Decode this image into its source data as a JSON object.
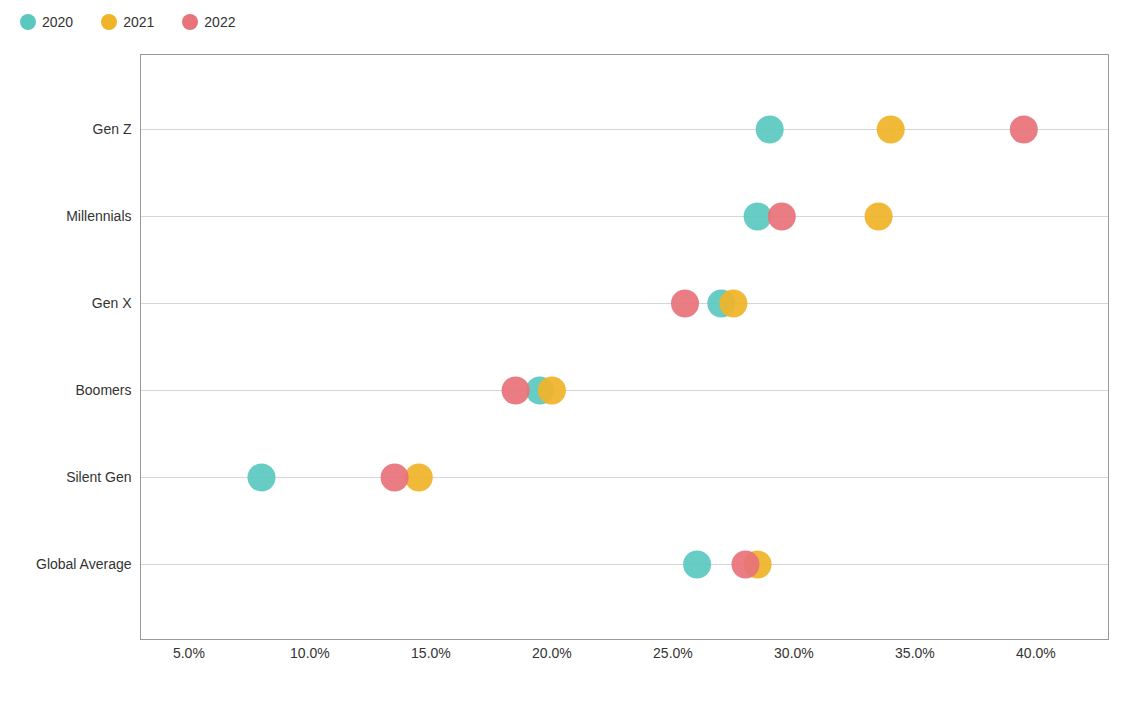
{
  "chart_data": {
    "type": "dot",
    "orientation": "horizontal",
    "categories": [
      "Gen Z",
      "Millennials",
      "Gen X",
      "Boomers",
      "Silent Gen",
      "Global Average"
    ],
    "series": [
      {
        "name": "2020",
        "color": "#5BC8C0",
        "values": [
          29.0,
          28.5,
          27.0,
          19.5,
          8.0,
          26.0
        ]
      },
      {
        "name": "2021",
        "color": "#F0B429",
        "values": [
          34.0,
          33.5,
          27.5,
          20.0,
          14.5,
          28.5
        ]
      },
      {
        "name": "2022",
        "color": "#E8737A",
        "values": [
          39.5,
          29.5,
          25.5,
          18.5,
          13.5,
          28.0
        ]
      }
    ],
    "xlim": [
      3.0,
      43.0
    ],
    "xticks": [
      {
        "value": 5.0,
        "label": "5.0%"
      },
      {
        "value": 10.0,
        "label": "10.0%"
      },
      {
        "value": 15.0,
        "label": "15.0%"
      },
      {
        "value": 20.0,
        "label": "20.0%"
      },
      {
        "value": 25.0,
        "label": "25.0%"
      },
      {
        "value": 30.0,
        "label": "30.0%"
      },
      {
        "value": 35.0,
        "label": "35.0%"
      },
      {
        "value": 40.0,
        "label": "40.0%"
      }
    ],
    "grid": true,
    "legend": "upper left"
  }
}
